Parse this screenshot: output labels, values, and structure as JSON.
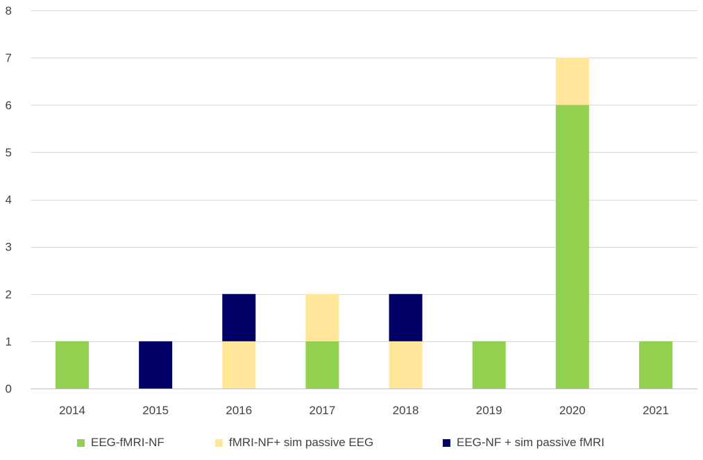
{
  "chart_data": {
    "type": "bar",
    "stacked": true,
    "title": "",
    "xlabel": "",
    "ylabel": "",
    "categories": [
      "2014",
      "2015",
      "2016",
      "2017",
      "2018",
      "2019",
      "2020",
      "2021"
    ],
    "series": [
      {
        "name": "EEG-fMRI-NF",
        "color": "#92d050",
        "values": [
          1,
          0,
          0,
          1,
          0,
          1,
          6,
          1
        ]
      },
      {
        "name": "fMRI-NF+ sim passive EEG",
        "color": "#ffe699",
        "values": [
          0,
          0,
          1,
          1,
          1,
          0,
          1,
          0
        ]
      },
      {
        "name": "EEG-NF + sim passive fMRI",
        "color": "#000066",
        "values": [
          0,
          1,
          1,
          0,
          1,
          0,
          0,
          0
        ]
      }
    ],
    "ylim": [
      0,
      8
    ],
    "yticks": [
      0,
      1,
      2,
      3,
      4,
      5,
      6,
      7,
      8
    ],
    "grid": true,
    "legend_position": "bottom"
  }
}
